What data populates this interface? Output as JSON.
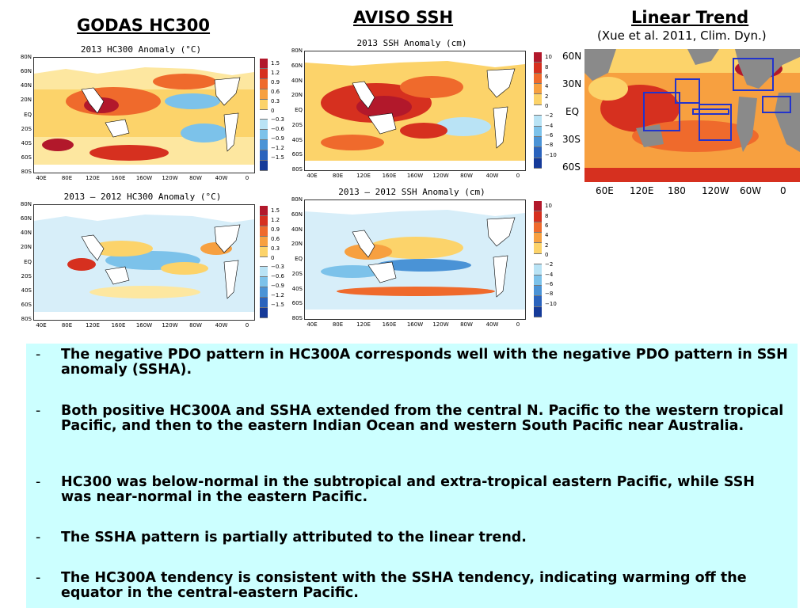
{
  "headers": {
    "godas": "GODAS HC300",
    "aviso": "AVISO SSH",
    "trend": "Linear Trend",
    "trend_ref": "(Xue et al. 2011, Clim. Dyn.)"
  },
  "panels": {
    "hc_2013": "2013 HC300 Anomaly (°C)",
    "hc_diff": "2013 – 2012 HC300 Anomaly (°C)",
    "ssh_2013": "2013 SSH Anomaly (cm)",
    "ssh_diff": "2013 – 2012 SSH Anomaly (cm)"
  },
  "axes": {
    "lat_ticks": [
      "80N",
      "60N",
      "40N",
      "20N",
      "EQ",
      "20S",
      "40S",
      "60S",
      "80S"
    ],
    "lon_ticks": [
      "40E",
      "80E",
      "120E",
      "160E",
      "160W",
      "120W",
      "80W",
      "40W",
      "0"
    ],
    "trend_lat": [
      "60N",
      "30N",
      "EQ",
      "30S",
      "60S"
    ],
    "trend_lon": [
      "60E",
      "120E",
      "180",
      "120W",
      "60W",
      "0"
    ]
  },
  "colorbars": {
    "hc": [
      "1.5",
      "1.2",
      "0.9",
      "0.6",
      "0.3",
      "0",
      "−0.3",
      "−0.6",
      "−0.9",
      "−1.2",
      "−1.5"
    ],
    "ssh": [
      "10",
      "8",
      "6",
      "4",
      "2",
      "0",
      "−2",
      "−4",
      "−6",
      "−8",
      "−10"
    ],
    "colors": [
      "#b2182b",
      "#d6301f",
      "#ef6a2c",
      "#f7a040",
      "#fcd36a",
      "#ffffff",
      "#b9e3f5",
      "#7cc2ea",
      "#4a93d6",
      "#2a63bd",
      "#153a99"
    ]
  },
  "bullets": [
    {
      "dash": "-",
      "text": "The negative PDO pattern in HC300A corresponds well with the negative PDO pattern in SSH anomaly (SSHA)."
    },
    {
      "dash": "-",
      "text": "Both positive HC300A and SSHA extended from the central N. Pacific to the western tropical Pacific, and then to the eastern Indian Ocean and western South Pacific near Australia."
    },
    {
      "dash": "-",
      "text": "HC300 was below-normal in the subtropical and extra-tropical eastern Pacific, while SSH was near-normal in the eastern Pacific."
    },
    {
      "dash": "-",
      "text": "The SSHA pattern is partially attributed to the linear trend."
    },
    {
      "dash": "-",
      "text": "The HC300A tendency is consistent with the SSHA tendency, indicating warming off the equator in the central-eastern Pacific."
    }
  ]
}
